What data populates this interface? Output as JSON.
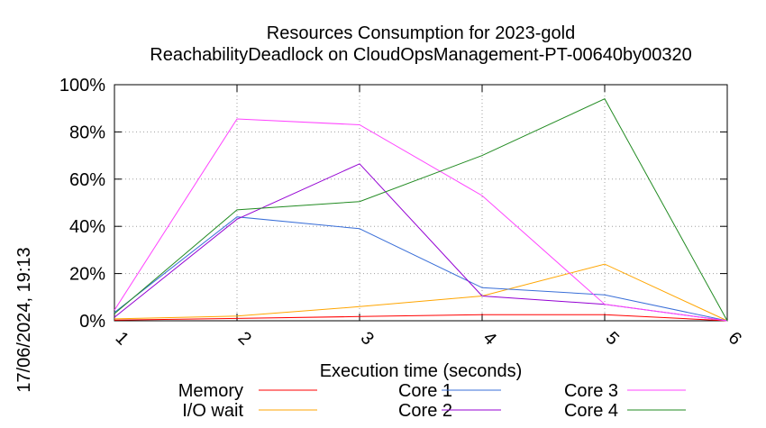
{
  "chart_data": {
    "type": "line",
    "title_line1": "Resources Consumption for 2023-gold",
    "title_line2": "ReachabilityDeadlock on CloudOpsManagement-PT-00640by00320",
    "xlabel": "Execution time (seconds)",
    "ylabel": "",
    "side_label": "17/06/2024, 19:13",
    "x": [
      1,
      2,
      3,
      4,
      5,
      6
    ],
    "xlim": [
      1,
      6
    ],
    "ylim": [
      0,
      100
    ],
    "x_ticks": [
      "1",
      "2",
      "3",
      "4",
      "5",
      "6"
    ],
    "y_ticks": [
      "0%",
      "20%",
      "40%",
      "60%",
      "80%",
      "100%"
    ],
    "grid": true,
    "legend_placement": "bottom",
    "series": [
      {
        "name": "Memory",
        "color": "#ff0000",
        "values": [
          0.3,
          1.0,
          1.8,
          2.6,
          2.6,
          0
        ]
      },
      {
        "name": "I/O wait",
        "color": "#ffa500",
        "values": [
          0.8,
          2.0,
          6.0,
          10.5,
          24.0,
          0
        ]
      },
      {
        "name": "Core 1",
        "color": "#3a6fd8",
        "values": [
          3.5,
          44.0,
          39.0,
          14.0,
          11.0,
          0
        ]
      },
      {
        "name": "Core 2",
        "color": "#9400d3",
        "values": [
          1.5,
          43.0,
          66.5,
          10.5,
          7.0,
          0
        ]
      },
      {
        "name": "Core 3",
        "color": "#ff44ff",
        "values": [
          4.5,
          85.5,
          83.0,
          53.0,
          7.0,
          0
        ]
      },
      {
        "name": "Core 4",
        "color": "#228b22",
        "values": [
          3.0,
          47.0,
          50.5,
          70.0,
          94.0,
          0
        ]
      }
    ]
  }
}
